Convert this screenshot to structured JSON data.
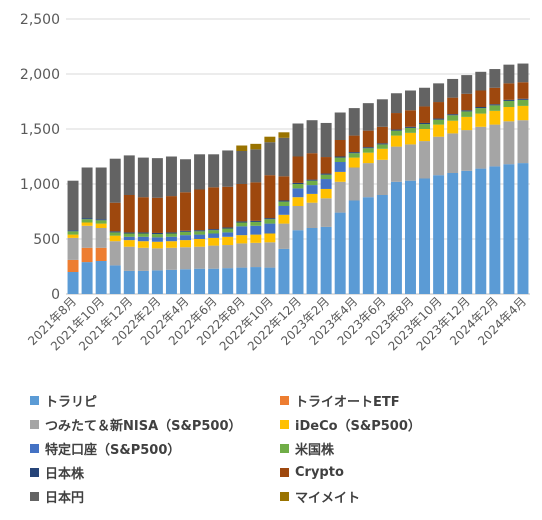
{
  "chart_data": {
    "type": "bar",
    "stacked": true,
    "categories": [
      "2021年8月",
      "2021年9月",
      "2021年10月",
      "2021年11月",
      "2021年12月",
      "2022年1月",
      "2022年2月",
      "2022年3月",
      "2022年4月",
      "2022年5月",
      "2022年6月",
      "2022年7月",
      "2022年8月",
      "2022年9月",
      "2022年10月",
      "2022年11月",
      "2022年12月",
      "2023年1月",
      "2023年2月",
      "2023年3月",
      "2023年4月",
      "2023年5月",
      "2023年6月",
      "2023年7月",
      "2023年8月",
      "2023年9月",
      "2023年10月",
      "2023年11月",
      "2023年12月",
      "2024年1月",
      "2024年2月",
      "2024年3月",
      "2024年4月"
    ],
    "x_tick_labels": [
      "2021年8月",
      "2021年10月",
      "2021年12月",
      "2022年2月",
      "2022年4月",
      "2022年6月",
      "2022年8月",
      "2022年10月",
      "2022年12月",
      "2023年2月",
      "2023年4月",
      "2023年6月",
      "2023年8月",
      "2023年10月",
      "2023年12月",
      "2024年2月",
      "2024年4月"
    ],
    "ylim": [
      0,
      2500
    ],
    "y_ticks": [
      0,
      500,
      1000,
      1500,
      2000,
      2500
    ],
    "y_tick_labels": [
      "0",
      "500",
      "1,000",
      "1,500",
      "2,000",
      "2,500"
    ],
    "grid": true,
    "legend_position": "bottom",
    "series": [
      {
        "name": "トラリピ",
        "color": "#5B9BD5",
        "values": [
          200,
          290,
          300,
          260,
          210,
          210,
          215,
          220,
          225,
          230,
          230,
          235,
          240,
          245,
          240,
          410,
          580,
          600,
          610,
          740,
          850,
          880,
          900,
          1020,
          1030,
          1050,
          1080,
          1100,
          1120,
          1140,
          1160,
          1180,
          1190
        ]
      },
      {
        "name": "トライオートETF",
        "color": "#ED7D31",
        "values": [
          110,
          130,
          120,
          0,
          0,
          0,
          0,
          0,
          0,
          0,
          0,
          0,
          0,
          0,
          0,
          0,
          0,
          0,
          0,
          0,
          0,
          0,
          0,
          0,
          0,
          0,
          0,
          0,
          0,
          0,
          0,
          0,
          0
        ]
      },
      {
        "name": "つみたて＆新NISA（S&P500）",
        "color": "#A5A5A5",
        "values": [
          200,
          200,
          180,
          220,
          220,
          210,
          200,
          200,
          200,
          200,
          210,
          210,
          220,
          220,
          230,
          230,
          220,
          230,
          260,
          280,
          300,
          310,
          320,
          320,
          330,
          340,
          350,
          360,
          370,
          380,
          380,
          390,
          390
        ]
      },
      {
        "name": "iDeCo（S&P500）",
        "color": "#FFC000",
        "values": [
          30,
          30,
          40,
          50,
          60,
          60,
          60,
          60,
          65,
          70,
          70,
          75,
          75,
          75,
          80,
          80,
          80,
          80,
          85,
          90,
          90,
          95,
          100,
          100,
          105,
          110,
          110,
          115,
          120,
          120,
          125,
          130,
          130
        ]
      },
      {
        "name": "特定口座（S&P500）",
        "color": "#4472C4",
        "values": [
          0,
          0,
          0,
          0,
          30,
          40,
          40,
          40,
          45,
          40,
          40,
          40,
          80,
          80,
          90,
          80,
          80,
          80,
          90,
          90,
          0,
          0,
          0,
          0,
          0,
          0,
          0,
          0,
          0,
          0,
          0,
          0,
          0
        ]
      },
      {
        "name": "米国株",
        "color": "#70AD47",
        "values": [
          30,
          30,
          30,
          30,
          30,
          30,
          30,
          30,
          30,
          30,
          30,
          35,
          35,
          35,
          40,
          40,
          40,
          40,
          40,
          40,
          40,
          40,
          40,
          45,
          45,
          45,
          45,
          50,
          50,
          50,
          50,
          55,
          55
        ]
      },
      {
        "name": "日本株",
        "color": "#264478",
        "values": [
          10,
          10,
          10,
          10,
          10,
          10,
          10,
          10,
          10,
          10,
          10,
          10,
          10,
          10,
          10,
          10,
          10,
          10,
          10,
          10,
          10,
          10,
          10,
          10,
          10,
          10,
          10,
          10,
          10,
          10,
          10,
          10,
          10
        ]
      },
      {
        "name": "Crypto",
        "color": "#9E480E",
        "values": [
          0,
          0,
          0,
          260,
          340,
          320,
          320,
          330,
          350,
          370,
          380,
          370,
          340,
          350,
          390,
          220,
          240,
          240,
          150,
          150,
          150,
          150,
          150,
          150,
          150,
          150,
          150,
          150,
          150,
          150,
          150,
          150,
          150
        ]
      },
      {
        "name": "日本円",
        "color": "#636363",
        "values": [
          450,
          460,
          470,
          400,
          360,
          360,
          360,
          360,
          300,
          320,
          300,
          330,
          300,
          300,
          300,
          350,
          300,
          300,
          310,
          250,
          250,
          250,
          250,
          180,
          180,
          170,
          170,
          170,
          170,
          170,
          170,
          170,
          170
        ]
      },
      {
        "name": "マイメイト",
        "color": "#997300",
        "values": [
          0,
          0,
          0,
          0,
          0,
          0,
          0,
          0,
          0,
          0,
          0,
          0,
          50,
          50,
          50,
          50,
          0,
          0,
          0,
          0,
          0,
          0,
          0,
          0,
          0,
          0,
          0,
          0,
          0,
          0,
          0,
          0,
          0
        ]
      }
    ]
  }
}
